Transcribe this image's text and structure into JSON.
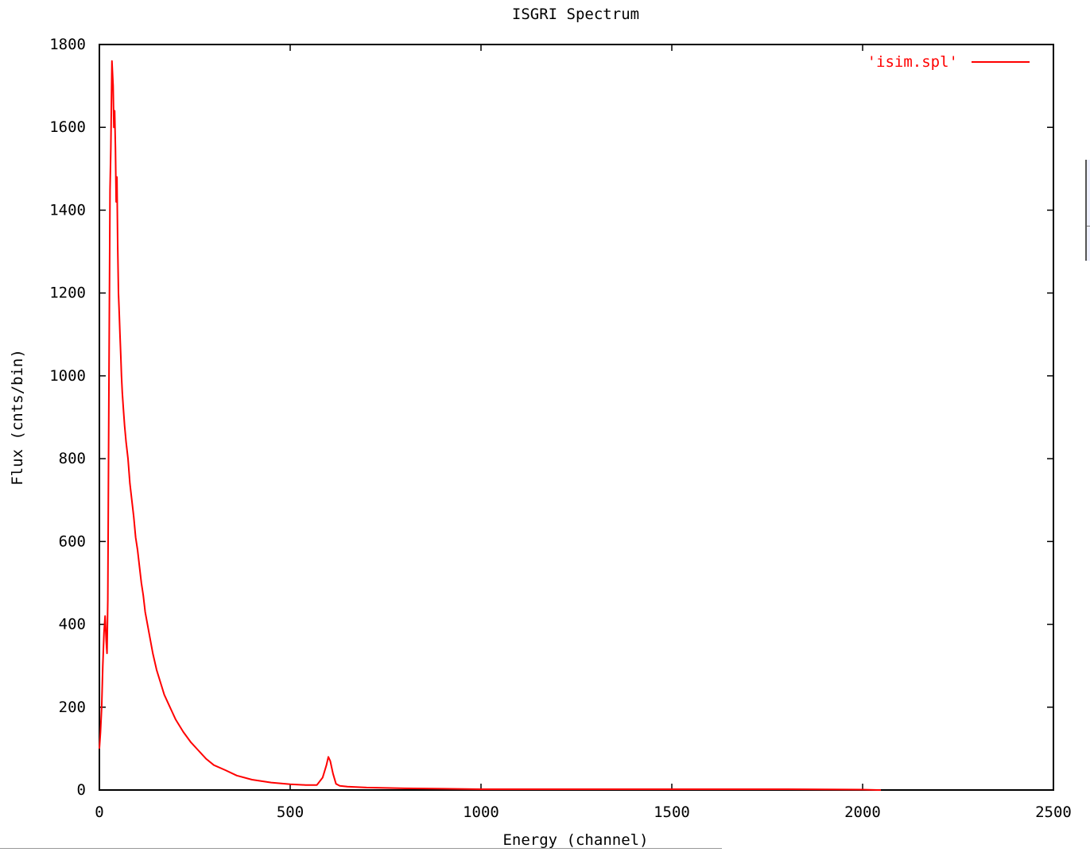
{
  "chart_data": {
    "type": "line",
    "title": "ISGRI Spectrum",
    "xlabel": "Energy (channel)",
    "ylabel": "Flux (cnts/bin)",
    "xlim": [
      0,
      2500
    ],
    "ylim": [
      0,
      1800
    ],
    "xticks": [
      0,
      500,
      1000,
      1500,
      2000,
      2500
    ],
    "yticks": [
      0,
      200,
      400,
      600,
      800,
      1000,
      1200,
      1400,
      1600,
      1800
    ],
    "xtick_labels": [
      "0",
      "500",
      "1000",
      "1500",
      "2000",
      "2500"
    ],
    "ytick_labels": [
      "0",
      "200",
      "400",
      "600",
      "800",
      "1000",
      "1200",
      "1400",
      "1600",
      "1800"
    ],
    "legend_position": "top-right",
    "grid": false,
    "series": [
      {
        "name": "'isim.spl'",
        "color": "#ff0000",
        "x": [
          0,
          3,
          6,
          9,
          12,
          15,
          18,
          20,
          22,
          25,
          28,
          30,
          33,
          36,
          38,
          40,
          42,
          44,
          46,
          48,
          50,
          52,
          54,
          56,
          58,
          60,
          63,
          66,
          70,
          75,
          80,
          85,
          90,
          95,
          100,
          105,
          110,
          115,
          120,
          130,
          140,
          150,
          160,
          170,
          180,
          190,
          200,
          220,
          240,
          260,
          280,
          300,
          330,
          360,
          400,
          450,
          500,
          540,
          570,
          585,
          595,
          600,
          605,
          612,
          620,
          630,
          650,
          700,
          800,
          900,
          1000,
          1200,
          1500,
          1800,
          2000,
          2040,
          2048
        ],
        "y": [
          100,
          140,
          200,
          300,
          380,
          420,
          360,
          330,
          460,
          970,
          1450,
          1550,
          1760,
          1700,
          1600,
          1640,
          1550,
          1420,
          1480,
          1320,
          1200,
          1150,
          1100,
          1050,
          1000,
          960,
          920,
          880,
          840,
          800,
          740,
          700,
          660,
          610,
          580,
          540,
          500,
          470,
          430,
          380,
          330,
          290,
          260,
          230,
          210,
          190,
          170,
          140,
          115,
          95,
          75,
          60,
          48,
          35,
          25,
          18,
          14,
          12,
          12,
          30,
          60,
          80,
          70,
          40,
          15,
          10,
          8,
          6,
          4,
          3,
          2,
          2,
          2,
          2,
          1,
          0,
          0
        ]
      }
    ]
  }
}
